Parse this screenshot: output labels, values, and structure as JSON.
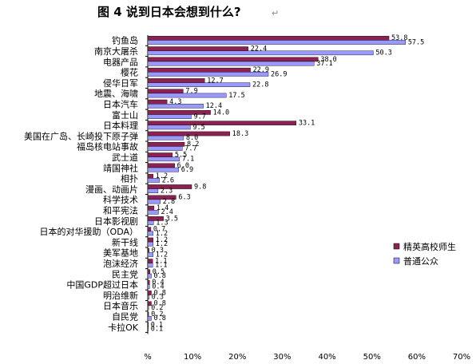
{
  "chart_data": {
    "type": "bar",
    "orientation": "horizontal",
    "title": "图 4  说到日本会想到什么?",
    "title_mark": "↵",
    "categories": [
      "钓鱼岛",
      "南京大屠杀",
      "电器产品",
      "樱花",
      "侵华日军",
      "地震、海啸",
      "日本汽车",
      "富士山",
      "日本料理",
      "美国在广岛、长崎投下原子弹",
      "福岛核电站事故",
      "武士道",
      "靖国神社",
      "相扑",
      "漫画、动画片",
      "科学技术",
      "和平宪法",
      "日本影视剧",
      "日本的对华援助（ODA）",
      "新干线",
      "美军基地",
      "泡沫经济",
      "民主党",
      "中国GDP超过日本",
      "明治维新",
      "日本音乐",
      "自民党",
      "卡拉OK"
    ],
    "series": [
      {
        "name": "精英高校师生",
        "color": "#8B2252",
        "values": [
          53.8,
          22.4,
          38.0,
          22.9,
          12.7,
          7.9,
          4.3,
          14.0,
          33.1,
          18.3,
          8.2,
          5.5,
          6.0,
          1.2,
          9.8,
          6.3,
          1.4,
          3.5,
          0.7,
          1.2,
          0.3,
          1.1,
          0.5,
          0.4,
          0.8,
          0.8,
          0.2,
          0.1
        ]
      },
      {
        "name": "普通公众",
        "color": "#9999FF",
        "values": [
          57.5,
          50.3,
          37.1,
          26.9,
          22.8,
          17.5,
          12.4,
          9.7,
          9.5,
          8.0,
          7.7,
          7.1,
          6.9,
          2.6,
          2.3,
          2.8,
          2.4,
          1.3,
          1.2,
          1.2,
          1.2,
          1.1,
          0.8,
          0.4,
          0.3,
          0.2,
          0.8,
          0.1
        ]
      }
    ],
    "value_labels": [
      [
        "53.8",
        "22.4",
        "38.0",
        "22.9",
        "12.7",
        "7.9",
        "4.3",
        "14.0",
        "33.1",
        "18.3",
        "8.2",
        "5.5",
        "6.0",
        "1.2",
        "9.8",
        "6.3",
        "1.4",
        "3.5",
        "0.7",
        "1.2",
        "0.3",
        "1.1",
        "0.5",
        "0.4",
        "0.8",
        "0.8",
        "0.2",
        "0.1"
      ],
      [
        "57.5",
        "50.3",
        "37.1",
        "26.9",
        "22.8",
        "17.5",
        "12.4",
        "9.7",
        "9.5",
        "8.0",
        "7.7",
        "7.1",
        "6.9",
        "2.6",
        "2.3",
        "2.8",
        "2.4",
        "1.3",
        "1.2",
        "1.2",
        "1.2",
        "1.1",
        "0.8",
        "0.4",
        "0.3",
        "0.2",
        "0.8",
        "0.1"
      ]
    ],
    "x_ticks": [
      "%",
      "10%",
      "20%",
      "30%",
      "40%",
      "50%",
      "60%",
      "70%"
    ],
    "xlim": [
      0,
      70
    ],
    "grid": false,
    "legend": "right"
  }
}
